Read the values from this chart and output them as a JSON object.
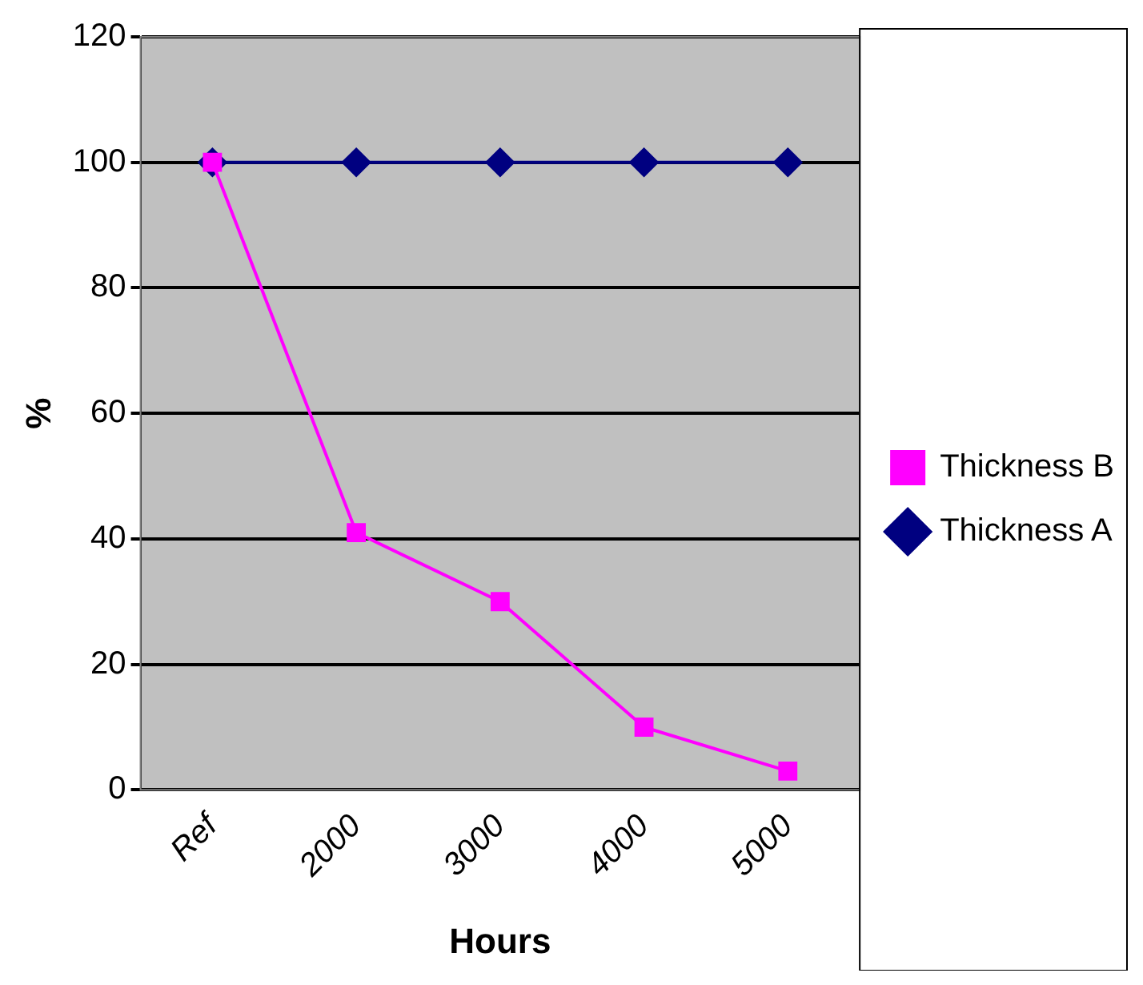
{
  "chart_data": {
    "type": "line",
    "xlabel": "Hours",
    "ylabel": "%",
    "categories": [
      "Ref",
      "2000",
      "3000",
      "4000",
      "5000"
    ],
    "series": [
      {
        "name": "Thickness A",
        "color": "#000080",
        "marker": "diamond",
        "values": [
          100,
          100,
          100,
          100,
          100
        ]
      },
      {
        "name": "Thickness B",
        "color": "#ff00ff",
        "marker": "square",
        "values": [
          100,
          41,
          30,
          10,
          3
        ]
      }
    ],
    "ylim": [
      0,
      120
    ],
    "yticks": [
      0,
      20,
      40,
      60,
      80,
      100,
      120
    ],
    "grid": "y",
    "legend": "right"
  }
}
